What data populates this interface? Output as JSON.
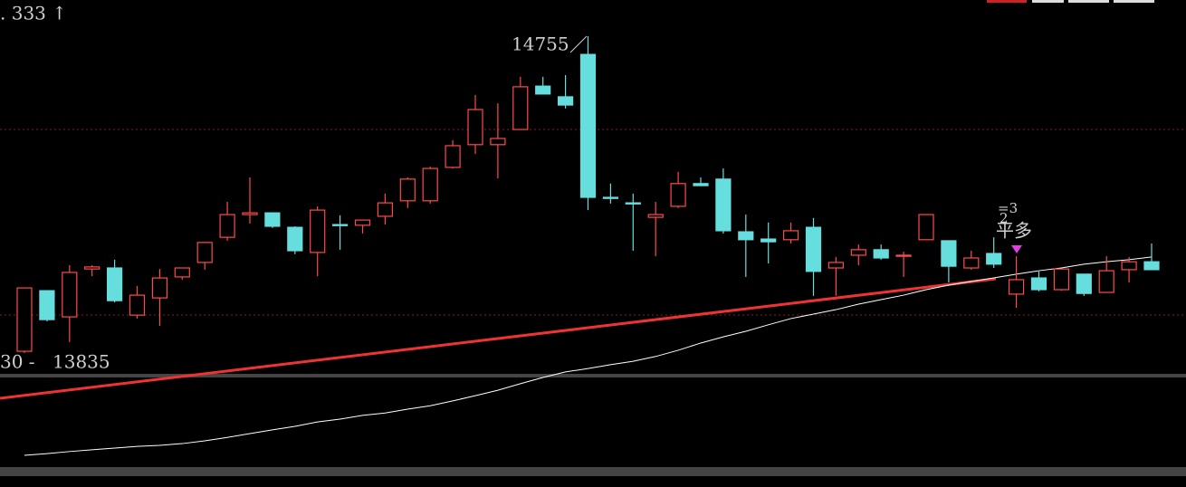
{
  "chart_data": {
    "type": "candlestick",
    "top_label": ". 333 ↑",
    "high_label": "14755",
    "low_prefix": "30 -",
    "low_label": "13835",
    "signal": "平多",
    "signal_marks": [
      "=3",
      "2"
    ],
    "ylim": [
      13446,
      14860
    ],
    "up_color": "#ff4a4a",
    "down_color": "#66dede",
    "ma_color": "#ffffff",
    "open": [
      13840,
      14016,
      13940,
      14079,
      14082,
      13945,
      13995,
      14056,
      14098,
      14171,
      14237,
      14242,
      14200,
      14127,
      14208,
      14206,
      14232,
      14277,
      14277,
      14374,
      14440,
      14440,
      14484,
      14610,
      14579,
      14702,
      14287,
      14271,
      14229,
      14261,
      14327,
      14340,
      14187,
      14166,
      14164,
      14200,
      14082,
      14119,
      14135,
      14116,
      14164,
      14161,
      14082,
      14124,
      14006,
      14053,
      14019,
      14064,
      14011,
      14077,
      14100
    ],
    "high": [
      14024,
      14016,
      14090,
      14090,
      14106,
      14030,
      14079,
      14082,
      14156,
      14274,
      14345,
      14242,
      14203,
      14261,
      14235,
      14221,
      14298,
      14345,
      14376,
      14453,
      14584,
      14560,
      14637,
      14637,
      14642,
      14755,
      14327,
      14298,
      14274,
      14361,
      14345,
      14371,
      14237,
      14214,
      14214,
      14227,
      14114,
      14150,
      14150,
      14129,
      14237,
      14161,
      14132,
      14171,
      14116,
      14072,
      14079,
      14064,
      14116,
      14114,
      14153
    ],
    "low": [
      13835,
      13927,
      13867,
      14058,
      13982,
      13935,
      13914,
      14048,
      14077,
      14161,
      14211,
      14198,
      14122,
      14058,
      14135,
      14182,
      14208,
      14256,
      14269,
      14371,
      14413,
      14342,
      14484,
      14587,
      14545,
      14250,
      14269,
      14132,
      14116,
      14256,
      14321,
      14182,
      14056,
      14095,
      14153,
      14001,
      14001,
      14090,
      14106,
      14056,
      14164,
      14040,
      14077,
      14082,
      13966,
      14014,
      14016,
      14001,
      14011,
      14040,
      14077
    ],
    "close": [
      14024,
      13932,
      14069,
      14085,
      13987,
      14003,
      14053,
      14082,
      14156,
      14237,
      14242,
      14203,
      14132,
      14250,
      14206,
      14221,
      14271,
      14340,
      14371,
      14437,
      14542,
      14458,
      14608,
      14587,
      14555,
      14287,
      14284,
      14269,
      14237,
      14327,
      14321,
      14190,
      14164,
      14158,
      14190,
      14072,
      14098,
      14135,
      14111,
      14119,
      14237,
      14087,
      14111,
      14093,
      14048,
      14019,
      14079,
      14008,
      14074,
      14100,
      14077
    ],
    "ma": [
      13538,
      13543,
      13549,
      13554,
      13559,
      13564,
      13567,
      13572,
      13580,
      13590,
      13601,
      13612,
      13622,
      13635,
      13643,
      13654,
      13661,
      13672,
      13682,
      13696,
      13711,
      13727,
      13746,
      13764,
      13780,
      13790,
      13801,
      13811,
      13825,
      13843,
      13864,
      13882,
      13898,
      13917,
      13935,
      13948,
      13961,
      13977,
      13990,
      14003,
      14019,
      14032,
      14043,
      14053,
      14064,
      14074,
      14082,
      14093,
      14100,
      14106,
      14114
    ]
  }
}
